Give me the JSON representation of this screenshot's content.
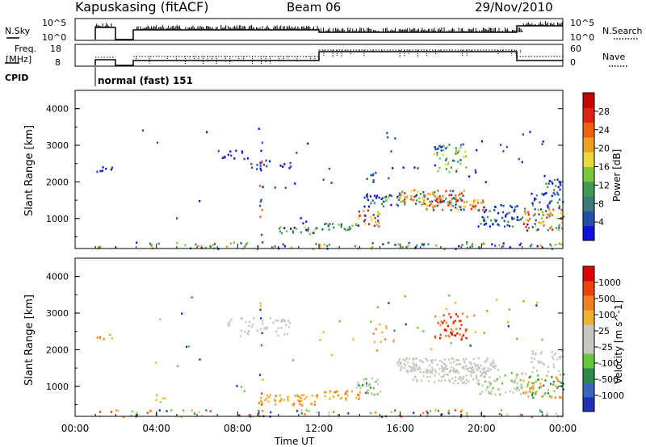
{
  "header": {
    "title": "Kapuskasing (fitACF)",
    "beam": "Beam 06",
    "date": "29/Nov/2010"
  },
  "strips": {
    "nsky_label": "N.Sky",
    "nsearch_label": "N.Search",
    "nsky_ticks": [
      "10^5",
      "10^0"
    ],
    "nsearch_ticks": [
      "10^5",
      "10^0"
    ],
    "freq_label_1": "Freq.",
    "freq_label_2": "[MHz]",
    "freq_ticks": [
      "18",
      "8"
    ],
    "nave_label": "Nave",
    "nave_ticks": [
      "60",
      "0"
    ],
    "cpid_label": "CPID",
    "cpid_value": "normal (fast) 151"
  },
  "colors": {
    "power_scale": [
      "#1010e0",
      "#2050a8",
      "#3a7a7a",
      "#3f9a55",
      "#7cc83c",
      "#e8d838",
      "#f0a020",
      "#f06010",
      "#e02010",
      "#c80000"
    ],
    "velocity_scale": [
      "#2030b8",
      "#3a66c0",
      "#2e8a48",
      "#66c840",
      "#c8c8c0",
      "#c8c8c0",
      "#f0b030",
      "#f08020",
      "#f04010",
      "#e00000"
    ]
  },
  "chart_data": [
    {
      "type": "heatmap",
      "name": "power",
      "ylabel": "Slant Range [km]",
      "yticks": [
        "4000",
        "3000",
        "2000",
        "1000"
      ],
      "ylim": [
        180,
        4500
      ],
      "xlim_hours": [
        0,
        24
      ],
      "colorbar": {
        "label": "Power [dB]",
        "ticks": [
          "28",
          "24",
          "20",
          "16",
          "12",
          "8",
          "4"
        ],
        "range": [
          0,
          30
        ]
      }
    },
    {
      "type": "heatmap",
      "name": "velocity",
      "ylabel": "Slant Range [km]",
      "yticks": [
        "4000",
        "3000",
        "2000",
        "1000"
      ],
      "ylim": [
        180,
        4500
      ],
      "xlim_hours": [
        0,
        24
      ],
      "xlabel": "Time UT",
      "xticks": [
        "00:00",
        "04:00",
        "08:00",
        "12:00",
        "16:00",
        "20:00",
        "00:00"
      ],
      "colorbar": {
        "label": "Velocity [m s^-1]",
        "ticks": [
          "1000",
          "500",
          "100",
          "25",
          "-25",
          "-100",
          "-500",
          "-1000"
        ]
      }
    }
  ]
}
